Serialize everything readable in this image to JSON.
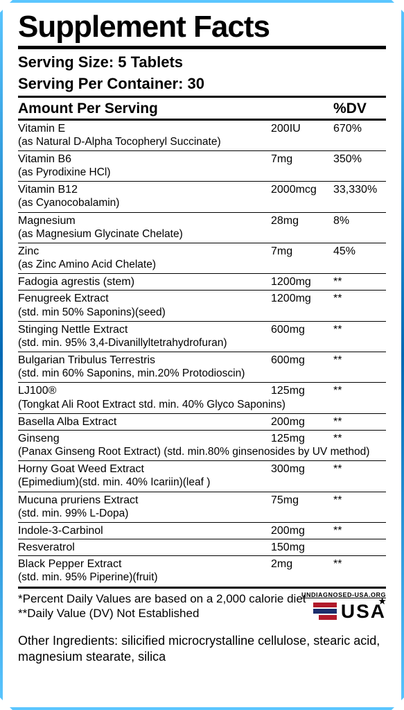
{
  "title": "Supplement Facts",
  "serving_size_label": "Serving Size:",
  "serving_size_value": "5 Tablets",
  "servings_per_label": "Serving Per Container:",
  "servings_per_value": "30",
  "header": {
    "name": "Amount Per Serving",
    "dv": "%DV"
  },
  "ingredients": [
    {
      "name": "Vitamin E",
      "sub": "(as Natural D-Alpha Tocopheryl Succinate)",
      "amount": "200IU",
      "dv": "670%"
    },
    {
      "name": "Vitamin B6",
      "sub": "(as Pyrodixine HCl)",
      "amount": "7mg",
      "dv": "350%"
    },
    {
      "name": "Vitamin B12",
      "sub": " (as Cyanocobalamin)",
      "amount": "2000mcg",
      "dv": "33,330%"
    },
    {
      "name": "Magnesium",
      "sub": "(as Magnesium Glycinate Chelate)",
      "amount": "28mg",
      "dv": "8%"
    },
    {
      "name": "Zinc",
      "sub": "(as Zinc Amino Acid Chelate)",
      "amount": "7mg",
      "dv": "45%"
    },
    {
      "name": "Fadogia agrestis (stem)",
      "sub": "",
      "amount": "1200mg",
      "dv": "**"
    },
    {
      "name": "Fenugreek Extract",
      "sub": "(std. min 50% Saponins)(seed)",
      "amount": "1200mg",
      "dv": "**"
    },
    {
      "name": "Stinging Nettle Extract",
      "sub": "(std. min. 95% 3,4-Divanillyltetrahydrofuran)",
      "amount": "600mg",
      "dv": "**"
    },
    {
      "name": "Bulgarian Tribulus Terrestris",
      "sub": "(std. min 60% Saponins, min.20% Protodioscin)",
      "amount": "600mg",
      "dv": "**"
    },
    {
      "name": "LJ100®",
      "sub": "(Tongkat Ali Root Extract std. min. 40% Glyco Saponins)",
      "amount": "125mg",
      "dv": "**"
    },
    {
      "name": "Basella Alba Extract",
      "sub": "",
      "amount": "200mg",
      "dv": "**"
    },
    {
      "name": "Ginseng",
      "sub": "(Panax Ginseng Root Extract) (std. min.80% ginsenosides by UV method)",
      "amount": "125mg",
      "dv": "**"
    },
    {
      "name": "Horny Goat Weed Extract",
      "sub": "(Epimedium)(std. min. 40% Icariin)(leaf )",
      "amount": "300mg",
      "dv": "**"
    },
    {
      "name": "Mucuna pruriens Extract",
      "sub": "(std. min. 99% L-Dopa)",
      "amount": "75mg",
      "dv": "**"
    },
    {
      "name": "Indole-3-Carbinol",
      "sub": "",
      "amount": "200mg",
      "dv": "**"
    },
    {
      "name": "Resveratrol",
      "sub": "",
      "amount": "150mg",
      "dv": ""
    },
    {
      "name": "Black Pepper Extract",
      "sub": "(std. min. 95% Piperine)(fruit)",
      "amount": "2mg",
      "dv": "**"
    }
  ],
  "footnote1": "*Percent Daily Values are based on a 2,000 calorie diet",
  "footnote2": "**Daily Value (DV) Not Established",
  "other_ingredients_label": "Other Ingredients:",
  "other_ingredients_text": "silicified microcrystalline cellulose, stearic acid, magnesium stearate, silica",
  "badge": {
    "url": "UNDIAGNOSED-USA.ORG",
    "usa": "USA"
  },
  "colors": {
    "text": "#000000",
    "border_light": "#5bc6ff",
    "border_dark": "#0068b3",
    "flag_red": "#b11a2b",
    "flag_blue": "#1b2d6b"
  }
}
